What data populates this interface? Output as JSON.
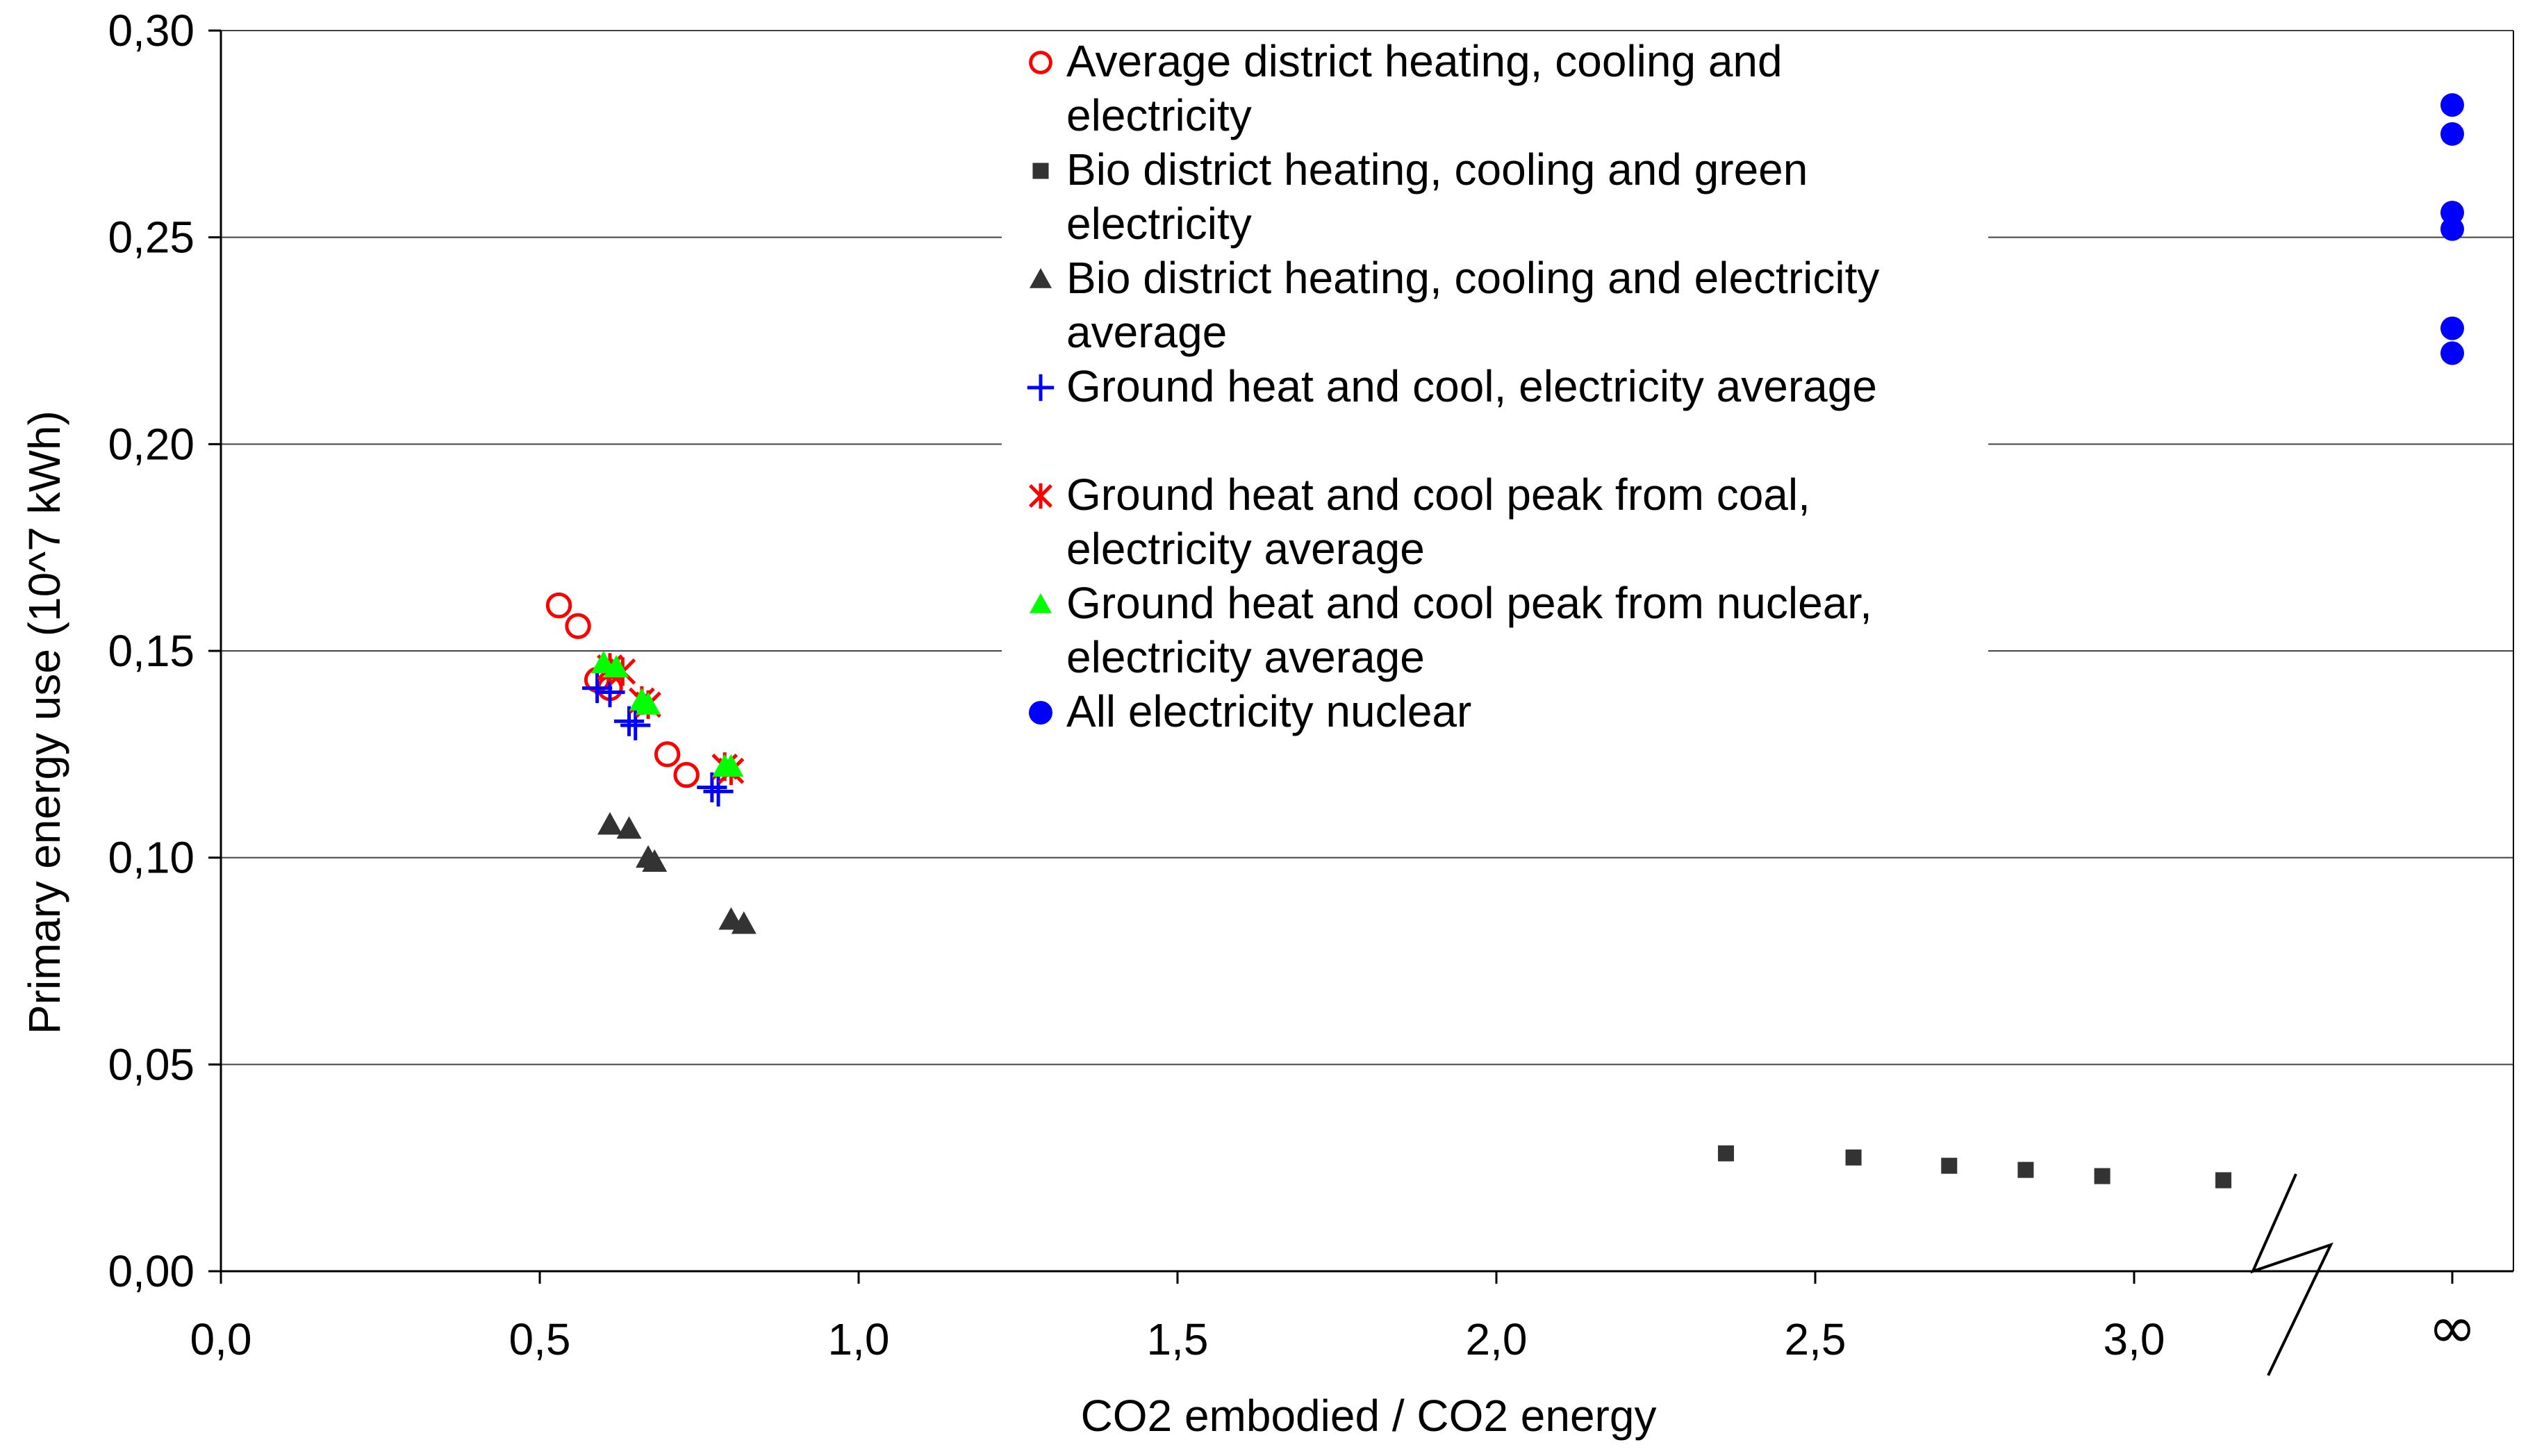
{
  "chart_data": {
    "type": "scatter",
    "title": "",
    "xlabel": "CO2 embodied / CO2 energy",
    "ylabel": "Primary energy use (10^7 kWh)",
    "xlim": [
      0,
      3.5
    ],
    "ylim": [
      0,
      0.3
    ],
    "grid": true,
    "xticks": [
      "0,0",
      "0,5",
      "1,0",
      "1,5",
      "2,0",
      "2,5",
      "3,0",
      "∞"
    ],
    "yticks": [
      "0,00",
      "0,05",
      "0,10",
      "0,15",
      "0,20",
      "0,25",
      "0,30"
    ],
    "axis_break": "between 3,0 and ∞",
    "legend_position": "top-center",
    "series": [
      {
        "name": "Average district heating, cooling and electricity",
        "legend_lines": [
          "Average district heating, cooling and",
          "electricity"
        ],
        "marker": "open-circle",
        "color": "#ff0000",
        "points": [
          [
            0.53,
            0.161
          ],
          [
            0.56,
            0.156
          ],
          [
            0.59,
            0.143
          ],
          [
            0.61,
            0.141
          ],
          [
            0.7,
            0.125
          ],
          [
            0.73,
            0.12
          ]
        ]
      },
      {
        "name": "Bio district heating, cooling and green electricity",
        "legend_lines": [
          "Bio district heating, cooling and green",
          "electricity"
        ],
        "marker": "square",
        "color": "#333333",
        "points": [
          [
            2.36,
            0.0285
          ],
          [
            2.56,
            0.0275
          ],
          [
            2.71,
            0.0255
          ],
          [
            2.83,
            0.0245
          ],
          [
            2.95,
            0.023
          ],
          [
            3.14,
            0.022
          ]
        ]
      },
      {
        "name": "Bio district heating, cooling and electricity average",
        "legend_lines": [
          "Bio district heating, cooling and electricity",
          "average"
        ],
        "marker": "triangle",
        "color": "#333333",
        "points": [
          [
            0.61,
            0.108
          ],
          [
            0.64,
            0.107
          ],
          [
            0.67,
            0.1
          ],
          [
            0.68,
            0.099
          ],
          [
            0.8,
            0.085
          ],
          [
            0.82,
            0.084
          ]
        ]
      },
      {
        "name": "Ground heat and cool, electricity average",
        "legend_lines": [
          "Ground heat and cool, electricity average"
        ],
        "marker": "plus",
        "color": "#0000ff",
        "points": [
          [
            0.59,
            0.141
          ],
          [
            0.61,
            0.14
          ],
          [
            0.64,
            0.133
          ],
          [
            0.65,
            0.132
          ],
          [
            0.77,
            0.117
          ],
          [
            0.78,
            0.116
          ]
        ]
      },
      {
        "name": "Ground heat and cool peak from coal, electricity average",
        "legend_lines": [
          "Ground heat and cool peak from coal,",
          "electricity average"
        ],
        "marker": "asterisk",
        "color": "#ff0000",
        "points": [
          [
            0.61,
            0.146
          ],
          [
            0.63,
            0.145
          ],
          [
            0.66,
            0.138
          ],
          [
            0.67,
            0.137
          ],
          [
            0.79,
            0.122
          ],
          [
            0.8,
            0.121
          ]
        ]
      },
      {
        "name": "Ground heat and cool peak from nuclear, electricity average",
        "legend_lines": [
          "Ground heat and cool peak from nuclear,",
          "electricity average"
        ],
        "marker": "triangle",
        "color": "#00ff00",
        "points": [
          [
            0.6,
            0.147
          ],
          [
            0.62,
            0.146
          ],
          [
            0.66,
            0.138
          ],
          [
            0.67,
            0.137
          ],
          [
            0.79,
            0.122
          ],
          [
            0.8,
            0.122
          ]
        ]
      },
      {
        "name": "All electricity nuclear",
        "legend_lines": [
          "All electricity nuclear"
        ],
        "marker": "filled-circle",
        "color": "#0000ff",
        "points": [
          [
            "∞",
            0.282
          ],
          [
            "∞",
            0.275
          ],
          [
            "∞",
            0.256
          ],
          [
            "∞",
            0.252
          ],
          [
            "∞",
            0.228
          ],
          [
            "∞",
            0.222
          ]
        ]
      }
    ]
  }
}
